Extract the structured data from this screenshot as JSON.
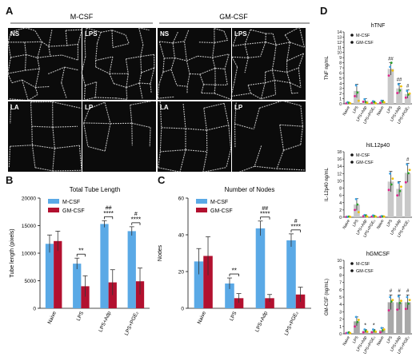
{
  "panels": {
    "A": {
      "letter": "A",
      "group_left": "M-CSF",
      "group_right": "GM-CSF",
      "tiles": [
        {
          "label": "NS"
        },
        {
          "label": "LPS"
        },
        {
          "label": "NS"
        },
        {
          "label": "LPS"
        },
        {
          "label": "LA"
        },
        {
          "label": "LP"
        },
        {
          "label": "LA"
        },
        {
          "label": "LP"
        }
      ]
    },
    "B": {
      "letter": "B"
    },
    "C": {
      "letter": "C"
    },
    "D": {
      "letter": "D"
    }
  },
  "colors": {
    "mcsf": "#5aa9e6",
    "gmcsf": "#b2102f",
    "grey_bar": "#c8c8c8",
    "dark_grey_bar": "#a8a8a8",
    "micrograph_bg": "#0b0b0b",
    "network": "#d8d8d8"
  },
  "chart_data": [
    {
      "id": "B",
      "type": "bar",
      "title": "Total Tube Length",
      "ylabel": "Tube length (pixels)",
      "xlabel": "",
      "ylim": [
        0,
        20000
      ],
      "yticks": [
        "0",
        "5000",
        "10000",
        "15000",
        "20000"
      ],
      "categories": [
        "Naive",
        "LPS",
        "LPS+Adp",
        "LPS+PGE₂"
      ],
      "series": [
        {
          "name": "M-CSF",
          "values": [
            11700,
            8100,
            15300,
            14000
          ],
          "errors": [
            1600,
            1000,
            600,
            800
          ]
        },
        {
          "name": "GM-CSF",
          "values": [
            12200,
            4000,
            4700,
            4900
          ],
          "errors": [
            1800,
            1900,
            2300,
            2400
          ]
        }
      ],
      "annotations": [
        {
          "category": 1,
          "stars": "**"
        },
        {
          "category": 2,
          "stars": "****",
          "hash": "##"
        },
        {
          "category": 3,
          "stars": "****",
          "hash": "#"
        }
      ],
      "legend": "top-left"
    },
    {
      "id": "C",
      "type": "bar",
      "title": "Number of Nodes",
      "ylabel": "Nodes",
      "xlabel": "",
      "ylim": [
        0,
        60
      ],
      "yticks": [
        "0",
        "20",
        "40",
        "60"
      ],
      "categories": [
        "Naive",
        "LPS",
        "LPS+Adp",
        "LPS+PGE₂"
      ],
      "series": [
        {
          "name": "M-CSF",
          "values": [
            25.5,
            13.5,
            43.5,
            37
          ],
          "errors": [
            7,
            3,
            4,
            3.5
          ]
        },
        {
          "name": "GM-CSF",
          "values": [
            28.5,
            5.5,
            5.5,
            7.5
          ],
          "errors": [
            10.5,
            2.5,
            2,
            4
          ]
        }
      ],
      "annotations": [
        {
          "category": 1,
          "stars": "**"
        },
        {
          "category": 2,
          "stars": "****",
          "hash": "##"
        },
        {
          "category": 3,
          "stars": "****",
          "hash": "#"
        }
      ],
      "legend": "top-left"
    },
    {
      "id": "D1",
      "type": "bar",
      "title": "hTNF",
      "ylabel": "TNF ng/mL",
      "xlabel": "",
      "ylim": [
        0,
        14
      ],
      "yticks": [
        "0",
        "1",
        "2",
        "3",
        "4",
        "5",
        "6",
        "7",
        "8",
        "9",
        "10",
        "11",
        "12",
        "13",
        "14"
      ],
      "categories": [
        "Naive",
        "LPS",
        "LPS+Adp",
        "LPS+PGE₂",
        "Naive",
        "LPS",
        "LPS+Adp",
        "LPS+PGE₂"
      ],
      "series": [
        {
          "name": "M-CSF",
          "values": [
            0.2,
            2.5,
            0.6,
            0.3,
            0.4,
            6.8,
            3.0,
            1.9
          ],
          "errors": [
            0.1,
            1.3,
            0.4,
            0.2,
            0.3,
            1.2,
            1.0,
            0.8
          ]
        }
      ],
      "annotations": [
        {
          "category": 5,
          "hash": "##"
        },
        {
          "category": 6,
          "hash": "##"
        },
        {
          "category": 7,
          "hash": "#"
        }
      ],
      "legend_entries": [
        "M-CSF",
        "GM-CSF"
      ],
      "legend": "top-left"
    },
    {
      "id": "D2",
      "type": "bar",
      "title": "hIL12p40",
      "ylabel": "IL-12p40 ng/mL",
      "xlabel": "",
      "ylim": [
        0,
        18
      ],
      "yticks": [
        "0",
        "2",
        "4",
        "6",
        "8",
        "10",
        "12",
        "14",
        "16",
        "18"
      ],
      "categories": [
        "Naive",
        "LPS",
        "LPS+Adp",
        "LPS+PGE₂",
        "Naive",
        "LPS",
        "LPS+Adp",
        "LPS+PGE₂"
      ],
      "series": [
        {
          "name": "M-CSF",
          "values": [
            0.1,
            3.5,
            0.4,
            0.3,
            0.2,
            9.8,
            7.8,
            12.2
          ],
          "errors": [
            0.1,
            1.6,
            0.3,
            0.2,
            0.2,
            2.8,
            2.0,
            2.6
          ]
        }
      ],
      "annotations": [
        {
          "category": 7,
          "hash": "#"
        }
      ],
      "legend_entries": [
        "M-CSF",
        "GM-CSF"
      ],
      "legend": "top-left"
    },
    {
      "id": "D3",
      "type": "bar",
      "title": "hGMCSF",
      "ylabel": "GM-CSF (ng/mL)",
      "xlabel": "",
      "ylim": [
        0,
        10
      ],
      "yticks": [
        "0",
        "1",
        "2",
        "3",
        "4",
        "5",
        "6",
        "7",
        "8",
        "9",
        "10"
      ],
      "categories": [
        "Naive",
        "LPS",
        "LPS+Adp",
        "LPS+PGE₂",
        "Naive",
        "LPS",
        "LPS+Adp",
        "LPS+PGE₂"
      ],
      "series": [
        {
          "name": "M-CSF",
          "values": [
            0.1,
            1.7,
            0.4,
            0.4,
            0.5,
            4.3,
            4.3,
            4.3
          ],
          "errors": [
            0.1,
            0.6,
            0.2,
            0.2,
            0.3,
            1.0,
            1.0,
            1.0
          ]
        }
      ],
      "annotations": [
        {
          "category": 2,
          "stars": "*"
        },
        {
          "category": 3,
          "stars": "*"
        },
        {
          "category": 5,
          "hash": "#"
        },
        {
          "category": 6,
          "hash": "#"
        },
        {
          "category": 7,
          "hash": "#"
        }
      ],
      "legend_entries": [
        "M-CSF",
        "GM-CSF"
      ],
      "legend": "top-left"
    }
  ]
}
